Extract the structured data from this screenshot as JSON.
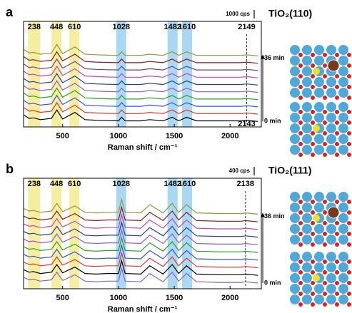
{
  "chart_data": [
    {
      "type": "line",
      "label": "a",
      "title": "TiO₂(110)",
      "scale_bar": "1000 cps",
      "xlabel": "Raman shift / cm⁻¹",
      "xlim": [
        150,
        2280
      ],
      "xticks": [
        500,
        1000,
        1500,
        2000
      ],
      "ylim": [
        0,
        80
      ],
      "time_start": "0 min",
      "time_end": "36 min",
      "x": [
        150,
        200,
        238,
        300,
        400,
        448,
        500,
        610,
        700,
        800,
        900,
        1000,
        1028,
        1060,
        1200,
        1280,
        1400,
        1482,
        1540,
        1610,
        1700,
        1900,
        2100,
        2149,
        2250
      ],
      "highlights": [
        {
          "label": "238",
          "range": [
            190,
            300
          ],
          "color": "#f5eea0"
        },
        {
          "label": "448",
          "range": [
            400,
            490
          ],
          "color": "#f5eea0"
        },
        {
          "label": "610",
          "range": [
            560,
            650
          ],
          "color": "#f5eea0"
        },
        {
          "label": "1028",
          "range": [
            980,
            1070
          ],
          "color": "#a8d8f2"
        },
        {
          "label": "1482",
          "range": [
            1440,
            1530
          ],
          "color": "#a8d8f2"
        },
        {
          "label": "1610",
          "range": [
            1570,
            1660
          ],
          "color": "#a8d8f2"
        }
      ],
      "dashed": {
        "label": "2149",
        "x": 2149,
        "lower_label": "2143"
      },
      "series": [
        {
          "color": "#000000",
          "values": [
            10,
            7,
            7.5,
            6,
            7,
            14,
            6.5,
            12,
            6,
            5.5,
            5.2,
            5,
            8,
            5,
            5,
            6,
            5,
            8,
            5,
            8,
            5,
            5,
            5,
            5.5,
            4.5
          ]
        },
        {
          "color": "#e8352b",
          "values": [
            16,
            13,
            13.5,
            12,
            13,
            20,
            12.5,
            18,
            12,
            11.5,
            11.2,
            11,
            14,
            11,
            11,
            12,
            11,
            14,
            11,
            14,
            11,
            11,
            11,
            11.5,
            10.5
          ]
        },
        {
          "color": "#3a53d6",
          "values": [
            22,
            19,
            19.5,
            18,
            19,
            26,
            18.5,
            24,
            18,
            17.5,
            17.2,
            17,
            20,
            17,
            17,
            18,
            17,
            20,
            17,
            20,
            17,
            17,
            17,
            17.5,
            16.5
          ]
        },
        {
          "color": "#2aa02a",
          "values": [
            28,
            25,
            25.5,
            24,
            25,
            32,
            24.5,
            30,
            24,
            23.5,
            23.2,
            23,
            26,
            23,
            23,
            24,
            23,
            26,
            23,
            26,
            23,
            23,
            23,
            23.5,
            22.5
          ]
        },
        {
          "color": "#8b5fc9",
          "values": [
            34,
            31,
            31.5,
            30,
            31,
            38,
            30.5,
            36,
            30,
            29.5,
            29.2,
            29,
            32,
            29,
            29,
            30,
            29,
            32,
            29,
            32,
            29,
            29,
            29,
            29.5,
            28.5
          ]
        },
        {
          "color": "#283a9e",
          "values": [
            40,
            37,
            37.5,
            36,
            37,
            44,
            36.5,
            42,
            36,
            35.5,
            35.2,
            35,
            38,
            35,
            35,
            36,
            35,
            38,
            35,
            38,
            35,
            35,
            35,
            35.5,
            34.5
          ]
        },
        {
          "color": "#c048c0",
          "values": [
            46,
            43,
            43.5,
            42,
            43,
            50,
            42.5,
            48,
            42,
            41.5,
            41.2,
            41,
            44,
            41,
            41,
            42,
            41,
            44,
            41,
            44,
            41,
            41,
            41,
            41.5,
            40.5
          ]
        },
        {
          "color": "#6b3fa0",
          "values": [
            52,
            49,
            49.5,
            48,
            49,
            56,
            48.5,
            54,
            48,
            47.5,
            47.2,
            47,
            50,
            47,
            47,
            48,
            47,
            50,
            47,
            50,
            47,
            47,
            47,
            47.5,
            46.5
          ]
        },
        {
          "color": "#8b1a1a",
          "values": [
            58,
            55,
            55.5,
            54,
            55,
            62,
            54.5,
            60,
            54,
            53.5,
            53.2,
            53,
            56,
            53,
            53,
            54,
            53,
            56,
            53,
            56,
            53,
            53,
            53,
            53.5,
            52.5
          ]
        },
        {
          "color": "#8f9a3a",
          "values": [
            64,
            61,
            61.5,
            60,
            61,
            68,
            60.5,
            66,
            60,
            59.5,
            59.2,
            59,
            62,
            59,
            59,
            60,
            59,
            62,
            59,
            62,
            59,
            59,
            59,
            59.5,
            58.5
          ]
        }
      ]
    },
    {
      "type": "line",
      "label": "b",
      "title": "TiO₂(111)",
      "scale_bar": "400 cps",
      "xlabel": "Raman shift / cm⁻¹",
      "xlim": [
        150,
        2280
      ],
      "xticks": [
        500,
        1000,
        1500,
        2000
      ],
      "ylim": [
        0,
        80
      ],
      "time_start": "0 min",
      "time_end": "36 min",
      "x": [
        150,
        200,
        238,
        300,
        400,
        448,
        500,
        610,
        700,
        800,
        900,
        1000,
        1028,
        1060,
        1200,
        1280,
        1400,
        1482,
        1540,
        1610,
        1700,
        1900,
        2100,
        2138,
        2250
      ],
      "highlights": [
        {
          "label": "238",
          "range": [
            190,
            300
          ],
          "color": "#f5eea0"
        },
        {
          "label": "448",
          "range": [
            400,
            490
          ],
          "color": "#f5eea0"
        },
        {
          "label": "610",
          "range": [
            560,
            650
          ],
          "color": "#f5eea0"
        },
        {
          "label": "1028",
          "range": [
            980,
            1070
          ],
          "color": "#a8d8f2"
        },
        {
          "label": "1482",
          "range": [
            1440,
            1530
          ],
          "color": "#a8d8f2"
        },
        {
          "label": "1610",
          "range": [
            1570,
            1660
          ],
          "color": "#a8d8f2"
        }
      ],
      "dashed": {
        "label": "2138",
        "x": 2138
      },
      "series": [
        {
          "color": "#8b5fc9",
          "values": [
            9,
            7,
            7.5,
            6,
            7,
            13,
            6.5,
            11,
            6,
            5.5,
            6,
            6,
            16,
            6,
            5.5,
            12,
            5.5,
            13,
            6,
            12,
            5.5,
            5,
            5,
            5.5,
            4.5
          ]
        },
        {
          "color": "#000000",
          "values": [
            15,
            13,
            13.5,
            12,
            13,
            19,
            12.5,
            17,
            12,
            11.5,
            12,
            12,
            22,
            12,
            11.5,
            18,
            11.5,
            19,
            12,
            18,
            11.5,
            11,
            11,
            11.5,
            10.5
          ]
        },
        {
          "color": "#e8352b",
          "values": [
            21,
            19,
            19.5,
            18,
            19,
            25,
            18.5,
            23,
            18,
            17.5,
            18,
            18,
            28,
            18,
            17.5,
            24,
            17.5,
            25,
            18,
            24,
            17.5,
            17,
            17,
            17.5,
            16.5
          ]
        },
        {
          "color": "#3a53d6",
          "values": [
            27,
            25,
            25.5,
            24,
            25,
            31,
            24.5,
            29,
            24,
            23.5,
            24,
            24,
            34,
            24,
            23.5,
            30,
            23.5,
            31,
            24,
            30,
            23.5,
            23,
            23,
            23.5,
            22.5
          ]
        },
        {
          "color": "#2aa02a",
          "values": [
            33,
            31,
            31.5,
            30,
            31,
            37,
            30.5,
            35,
            30,
            29.5,
            30,
            30,
            40,
            30,
            29.5,
            36,
            29.5,
            37,
            30,
            36,
            29.5,
            29,
            29,
            29.5,
            28.5
          ]
        },
        {
          "color": "#8b5fc9",
          "values": [
            39,
            37,
            37.5,
            36,
            37,
            43,
            36.5,
            41,
            36,
            35.5,
            36,
            36,
            46,
            36,
            35.5,
            42,
            35.5,
            43,
            36,
            42,
            35.5,
            35,
            35,
            35.5,
            34.5
          ]
        },
        {
          "color": "#283a9e",
          "values": [
            45,
            43,
            43.5,
            42,
            43,
            49,
            42.5,
            47,
            42,
            41.5,
            42,
            42,
            52,
            42,
            41.5,
            48,
            41.5,
            49,
            42,
            48,
            41.5,
            41,
            41,
            41.5,
            40.5
          ]
        },
        {
          "color": "#c048c0",
          "values": [
            51,
            49,
            49.5,
            48,
            49,
            55,
            48.5,
            53,
            48,
            47.5,
            48,
            48,
            58,
            48,
            47.5,
            54,
            47.5,
            55,
            48,
            54,
            47.5,
            47,
            47,
            47.5,
            46.5
          ]
        },
        {
          "color": "#8b1a1a",
          "values": [
            57,
            55,
            55.5,
            54,
            55,
            61,
            54.5,
            59,
            54,
            53.5,
            54,
            54,
            64,
            54,
            53.5,
            60,
            53.5,
            61,
            54,
            60,
            53.5,
            53,
            53,
            53.5,
            52.5
          ]
        },
        {
          "color": "#8f9a3a",
          "values": [
            63,
            61,
            61.5,
            60,
            61,
            67,
            60.5,
            65,
            60,
            59.5,
            60,
            60,
            70,
            60,
            59.5,
            66,
            59.5,
            67,
            60,
            66,
            59.5,
            59,
            59,
            59.5,
            58.5
          ]
        }
      ]
    }
  ]
}
